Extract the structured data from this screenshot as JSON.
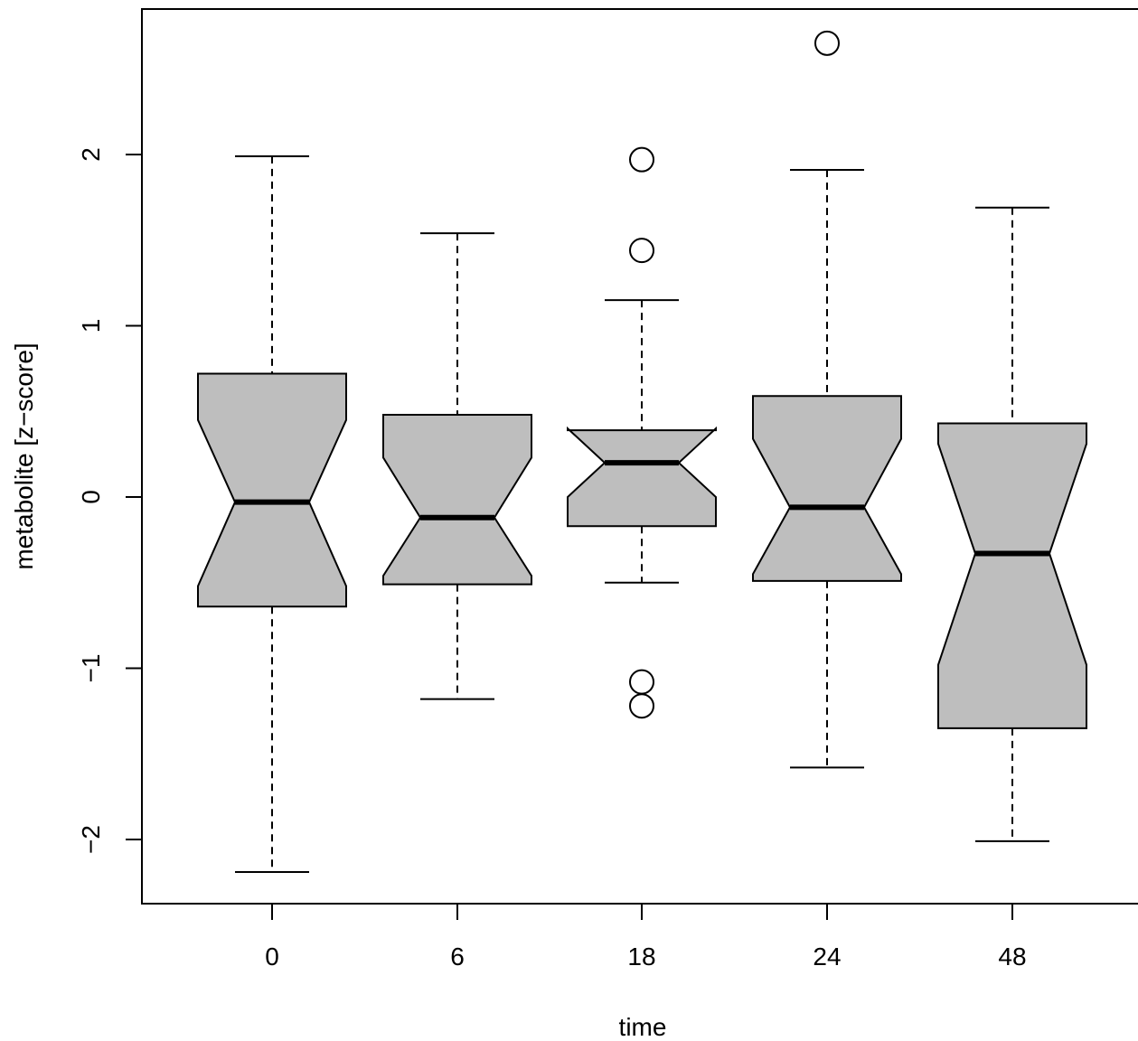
{
  "chart_data": {
    "type": "boxplot",
    "notched": true,
    "title": "",
    "xlabel": "time",
    "ylabel": "metabolite [z−score]",
    "ylim": [
      -2.38,
      2.86
    ],
    "yticks": [
      -2,
      -1,
      0,
      1,
      2
    ],
    "ytick_labels": [
      "−2",
      "−1",
      "0",
      "1",
      "2"
    ],
    "categories": [
      "0",
      "6",
      "18",
      "24",
      "48"
    ],
    "box_color": "#bebebe",
    "boxes": [
      {
        "category": "0",
        "whisker_low": -2.19,
        "q1": -0.64,
        "median": -0.03,
        "q3": 0.72,
        "whisker_high": 1.99,
        "notch_low": -0.52,
        "notch_high": 0.45,
        "outliers": []
      },
      {
        "category": "6",
        "whisker_low": -1.18,
        "q1": -0.51,
        "median": -0.12,
        "q3": 0.48,
        "whisker_high": 1.54,
        "notch_low": -0.46,
        "notch_high": 0.23,
        "outliers": []
      },
      {
        "category": "18",
        "whisker_low": -0.5,
        "q1": -0.17,
        "median": 0.2,
        "q3": 0.39,
        "whisker_high": 1.15,
        "notch_low": 0.0,
        "notch_high": 0.4,
        "outliers": [
          1.97,
          1.44,
          -1.08,
          -1.22
        ]
      },
      {
        "category": "24",
        "whisker_low": -1.58,
        "q1": -0.49,
        "median": -0.06,
        "q3": 0.59,
        "whisker_high": 1.91,
        "notch_low": -0.45,
        "notch_high": 0.34,
        "outliers": [
          2.65
        ]
      },
      {
        "category": "48",
        "whisker_low": -2.01,
        "q1": -1.35,
        "median": -0.33,
        "q3": 0.43,
        "whisker_high": 1.69,
        "notch_low": -0.98,
        "notch_high": 0.31,
        "outliers": []
      }
    ]
  }
}
